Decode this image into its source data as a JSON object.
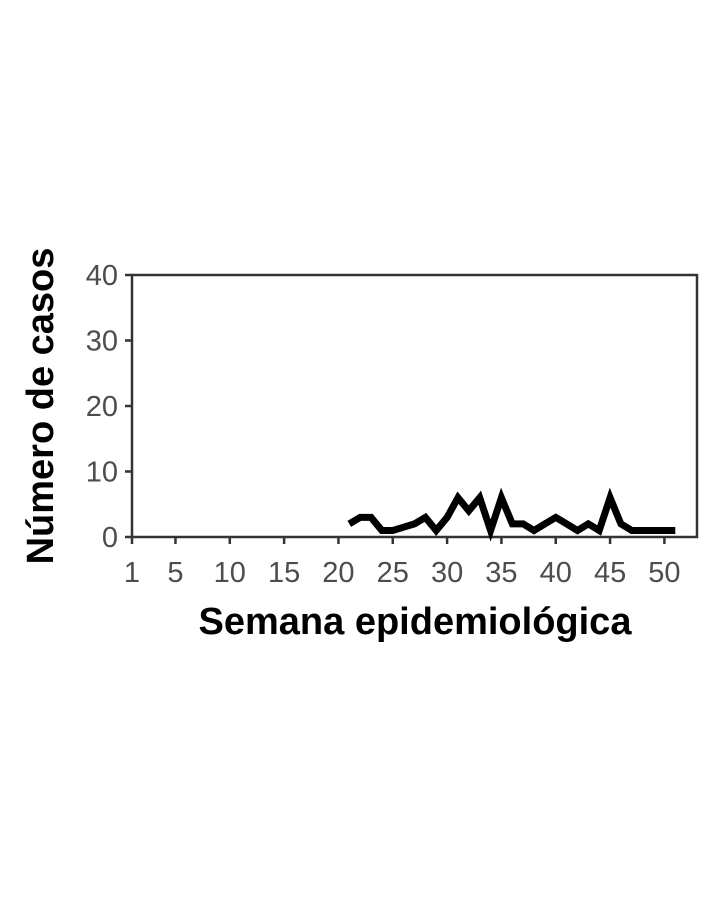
{
  "chart_data": {
    "type": "line",
    "xlabel": "Semana epidemiológica",
    "ylabel": "Número de casos",
    "xlim": [
      1,
      53
    ],
    "ylim": [
      0,
      40
    ],
    "x_ticks": [
      1,
      5,
      10,
      15,
      20,
      25,
      30,
      35,
      40,
      45,
      50
    ],
    "x_tick_labels": [
      "1",
      "5",
      "10",
      "15",
      "20",
      "25",
      "30",
      "35",
      "40",
      "45",
      "50"
    ],
    "y_ticks": [
      0,
      10,
      20,
      30,
      40
    ],
    "y_tick_labels": [
      "0",
      "10",
      "20",
      "30",
      "40"
    ],
    "grid": false,
    "series": [
      {
        "x": [
          21,
          22,
          23,
          24,
          25,
          26,
          27,
          28,
          29,
          30,
          31,
          32,
          33,
          34,
          35,
          36,
          37,
          38,
          39,
          40,
          41,
          42,
          43,
          44,
          45,
          46,
          47,
          48,
          49,
          50,
          51
        ],
        "values": [
          2,
          3,
          3,
          1,
          1,
          1.5,
          2,
          3,
          1,
          3,
          6,
          4,
          6,
          1,
          6,
          2,
          2,
          1,
          2,
          3,
          2,
          1,
          2,
          1,
          6,
          2,
          1,
          1,
          1,
          1,
          1
        ],
        "color": "#000000"
      }
    ]
  }
}
